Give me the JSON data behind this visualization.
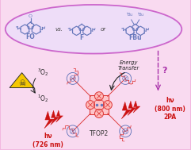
{
  "bg_color": "#f2b8e0",
  "bg_color_light": "#f9daf0",
  "ellipse_face": "#eeddf8",
  "ellipse_edge": "#cc66cc",
  "mol_color": "#6677bb",
  "porphyrin_red": "#dd3333",
  "porphyrin_light": "#ff8888",
  "porphyrin_fill": "#ffbbbb",
  "arm_color": "#dd3333",
  "fluor_color": "#6677bb",
  "arrow_dark": "#222222",
  "dashed_color": "#aa33aa",
  "hv_color": "#cc1111",
  "tri_yellow": "#f5c800",
  "tri_edge": "#333333",
  "label_FO": "FO",
  "label_F": "F",
  "label_FBu": "FBu",
  "label_vs": "vs.",
  "label_or": "or",
  "label_3O2": "$^3$O$_2$",
  "label_1O2": "$^1$O$_2$",
  "label_energy": "Energy\nTransfer",
  "label_TFOP2": "TFOP2",
  "label_hv1": "hν\n(726 nm)",
  "label_hv2": "hν\n(800 nm)\n2PA",
  "label_question": "?"
}
